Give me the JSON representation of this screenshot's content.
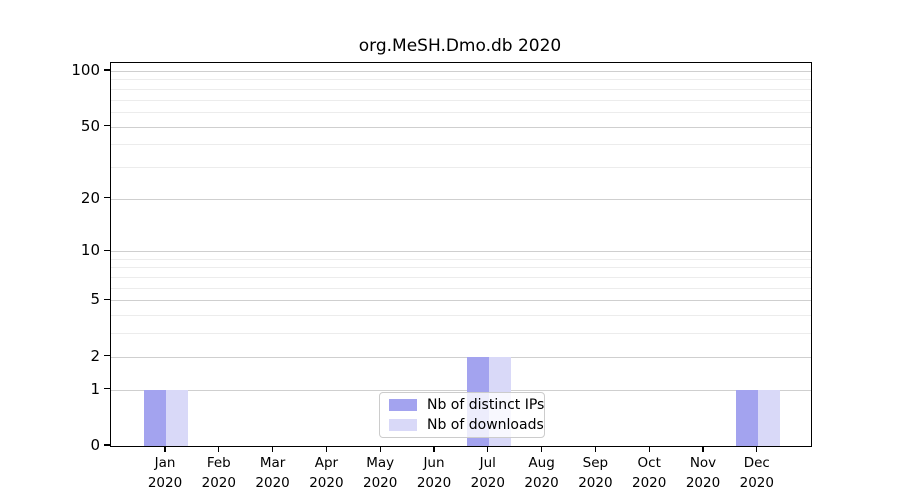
{
  "chart_data": {
    "type": "bar",
    "title": "org.MeSH.Dmo.db 2020",
    "categories": [
      "Jan",
      "Feb",
      "Mar",
      "Apr",
      "May",
      "Jun",
      "Jul",
      "Aug",
      "Sep",
      "Oct",
      "Nov",
      "Dec"
    ],
    "category_year": "2020",
    "series": [
      {
        "name": "Nb of distinct IPs",
        "color": "#a3a3ef",
        "values": [
          1,
          0,
          0,
          0,
          0,
          0,
          2,
          0,
          0,
          0,
          0,
          1
        ]
      },
      {
        "name": "Nb of downloads",
        "color": "#d9d9f8",
        "values": [
          1,
          0,
          0,
          0,
          0,
          0,
          2,
          0,
          0,
          0,
          0,
          1
        ]
      }
    ],
    "xlabel": "",
    "ylabel": "",
    "y_scale": "log1p",
    "y_major_ticks": [
      0,
      1,
      2,
      5,
      10,
      20,
      50,
      100
    ],
    "y_minor_gridlines": [
      3,
      4,
      6,
      7,
      8,
      9,
      30,
      40,
      60,
      70,
      80,
      90
    ],
    "ylim": [
      0,
      111
    ],
    "grid": true,
    "legend_position": "lower center",
    "colors": {
      "major_gridline": "#cfcfcf",
      "minor_gridline": "#ececec",
      "axis": "#000000",
      "text": "#000000",
      "background": "#ffffff"
    }
  }
}
